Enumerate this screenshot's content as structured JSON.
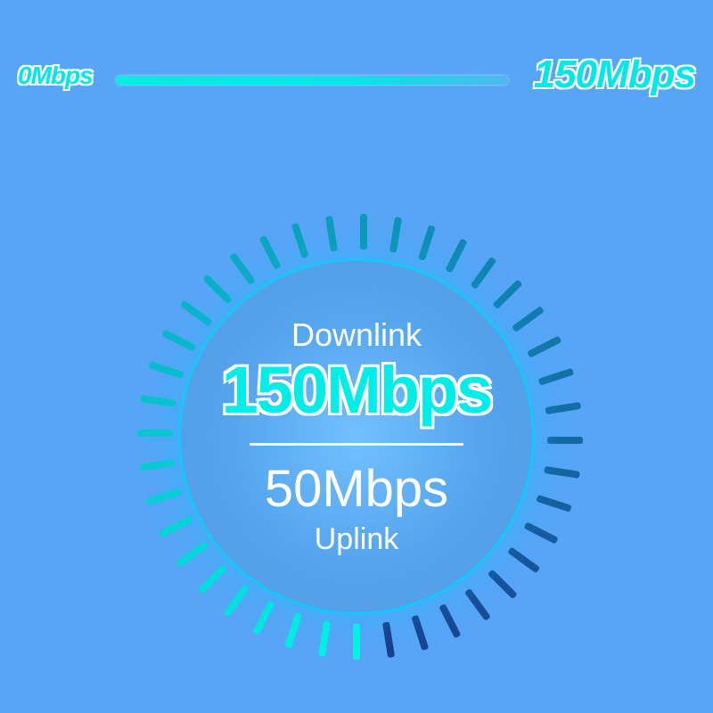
{
  "scale": {
    "min_label": "0Mbps",
    "max_label": "150Mbps",
    "fill_percent": 100,
    "bar_gradient_from": "#00f0e0",
    "bar_gradient_to": "#4fb8ef",
    "label_color": "#00e8e8",
    "outline_color": "#ffffff"
  },
  "gauge": {
    "type": "radial-gauge-infographic",
    "tick_count": 40,
    "tick_inner_radius": 210,
    "tick_length": 40,
    "tick_width": 8,
    "tick_color_start": "#00f5e5",
    "tick_color_end": "#1a3f8f",
    "disc_diameter": 400,
    "disc_fill_inner": "#72c0ff",
    "disc_fill_outer": "#3c8fe0",
    "disc_border_color": "#00dcff",
    "downlink": {
      "label": "Downlink",
      "value": "150Mbps",
      "value_color": "#00ede8",
      "value_outline": "#ffffff",
      "value_fontsize": 74,
      "label_fontsize": 36
    },
    "uplink": {
      "label": "Uplink",
      "value": "50Mbps",
      "value_color": "#ffffff",
      "value_fontsize": 58,
      "label_fontsize": 34
    },
    "divider_color": "#ffffff"
  },
  "background_color": "#57a5f7"
}
